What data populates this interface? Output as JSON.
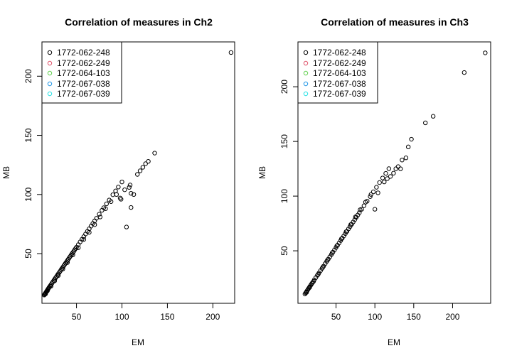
{
  "chart_data": [
    {
      "type": "scatter",
      "title": "Correlation of measures in Ch2",
      "xlabel": "EM",
      "ylabel": "MB",
      "xlim": [
        12,
        224
      ],
      "ylim": [
        8,
        229
      ],
      "xticks": [
        50,
        100,
        150,
        200
      ],
      "yticks": [
        50,
        100,
        150,
        200
      ],
      "grid": false,
      "legend_position": "top-left",
      "series": [
        {
          "name": "1772-062-248",
          "color": "#000000",
          "points": [
            [
              14.5,
              15
            ],
            [
              15,
              15.6
            ],
            [
              15.5,
              16.2
            ],
            [
              16,
              16.8
            ],
            [
              16.5,
              17.4
            ],
            [
              17,
              18
            ],
            [
              17.5,
              18.6
            ],
            [
              18,
              19.2
            ],
            [
              18.5,
              19.8
            ],
            [
              19,
              20.4
            ],
            [
              19.5,
              21
            ],
            [
              20,
              21.6
            ],
            [
              21,
              22.7
            ],
            [
              22,
              23.8
            ],
            [
              23,
              25
            ],
            [
              24,
              26.1
            ],
            [
              25,
              27.2
            ],
            [
              26,
              28.4
            ],
            [
              27,
              29.5
            ],
            [
              28,
              30.6
            ],
            [
              29,
              31.8
            ],
            [
              30,
              32.9
            ],
            [
              31,
              34
            ],
            [
              32,
              35.1
            ],
            [
              33,
              36.3
            ],
            [
              34,
              37.4
            ],
            [
              35,
              38.5
            ],
            [
              36,
              39.7
            ],
            [
              37,
              40.8
            ],
            [
              38,
              41.9
            ],
            [
              39,
              43
            ],
            [
              40,
              44.2
            ],
            [
              41,
              45.3
            ],
            [
              42,
              46.4
            ],
            [
              43,
              47.5
            ],
            [
              44,
              48.7
            ],
            [
              45,
              49.8
            ],
            [
              46,
              50.9
            ],
            [
              47,
              52
            ],
            [
              48,
              53.2
            ],
            [
              49,
              54.3
            ],
            [
              50,
              55.4
            ],
            [
              52,
              57.6
            ],
            [
              54,
              59.9
            ],
            [
              56,
              62.1
            ],
            [
              58,
              64.3
            ],
            [
              60,
              66.6
            ],
            [
              62,
              68.8
            ],
            [
              64,
              71
            ],
            [
              66,
              73.3
            ],
            [
              68,
              75.5
            ],
            [
              70,
              77.7
            ],
            [
              72,
              79.9
            ],
            [
              75,
              83.3
            ],
            [
              78,
              86.6
            ],
            [
              80,
              88.8
            ],
            [
              83,
              92.1
            ],
            [
              86,
              95.3
            ],
            [
              90,
              99.8
            ],
            [
              93,
              103
            ],
            [
              96,
              106.3
            ],
            [
              100,
              110.6
            ],
            [
              16,
              16
            ],
            [
              18,
              18.5
            ],
            [
              22,
              22.5
            ],
            [
              26,
              27
            ],
            [
              30,
              31.5
            ],
            [
              35,
              37
            ],
            [
              40,
              42.5
            ],
            [
              46,
              49
            ],
            [
              52,
              55
            ],
            [
              58,
              62
            ],
            [
              64,
              68
            ],
            [
              70,
              74.5
            ],
            [
              76,
              81
            ],
            [
              82,
              88
            ],
            [
              88,
              94
            ],
            [
              94,
              100
            ],
            [
              98,
              97
            ],
            [
              99,
              96
            ],
            [
              103,
              104
            ],
            [
              105,
              72.5
            ],
            [
              108,
              106
            ],
            [
              109,
              108
            ],
            [
              110,
              101
            ],
            [
              110,
              89
            ],
            [
              113,
              100
            ],
            [
              117,
              117
            ],
            [
              120,
              120
            ],
            [
              123,
              123
            ],
            [
              126,
              126
            ],
            [
              129,
              128
            ],
            [
              136,
              135
            ],
            [
              220,
              220
            ]
          ]
        },
        {
          "name": "1772-062-249",
          "color": "#df536b",
          "points": []
        },
        {
          "name": "1772-064-103",
          "color": "#61d04f",
          "points": []
        },
        {
          "name": "1772-067-038",
          "color": "#2297e6",
          "points": []
        },
        {
          "name": "1772-067-039",
          "color": "#28e2e5",
          "points": []
        }
      ]
    },
    {
      "type": "scatter",
      "title": "Correlation of measures in Ch3",
      "xlabel": "EM",
      "ylabel": "MB",
      "xlim": [
        1,
        249
      ],
      "ylim": [
        2,
        241
      ],
      "xticks": [
        50,
        100,
        150,
        200
      ],
      "yticks": [
        50,
        100,
        150,
        200
      ],
      "grid": false,
      "legend_position": "top-left",
      "series": [
        {
          "name": "1772-062-248",
          "color": "#000000",
          "points": [
            [
              10,
              10.5
            ],
            [
              11,
              11.5
            ],
            [
              12,
              12.6
            ],
            [
              13,
              13.7
            ],
            [
              14,
              14.8
            ],
            [
              15,
              15.9
            ],
            [
              16,
              17
            ],
            [
              17,
              18
            ],
            [
              18,
              19.1
            ],
            [
              19,
              20.2
            ],
            [
              20,
              21.2
            ],
            [
              22,
              23.4
            ],
            [
              24,
              25.5
            ],
            [
              26,
              27.6
            ],
            [
              28,
              29.7
            ],
            [
              30,
              31.8
            ],
            [
              32,
              33.9
            ],
            [
              34,
              36
            ],
            [
              36,
              38.2
            ],
            [
              38,
              40.3
            ],
            [
              40,
              42.4
            ],
            [
              42,
              44.5
            ],
            [
              44,
              46.6
            ],
            [
              46,
              48.8
            ],
            [
              48,
              50.9
            ],
            [
              50,
              53
            ],
            [
              52,
              55.1
            ],
            [
              54,
              57.2
            ],
            [
              56,
              59.4
            ],
            [
              58,
              61.5
            ],
            [
              60,
              63.6
            ],
            [
              62,
              65.7
            ],
            [
              64,
              67.8
            ],
            [
              66,
              70
            ],
            [
              68,
              72.1
            ],
            [
              70,
              74.2
            ],
            [
              72,
              76.3
            ],
            [
              74,
              78.4
            ],
            [
              76,
              80.6
            ],
            [
              78,
              82.7
            ],
            [
              80,
              84.8
            ],
            [
              83,
              88
            ],
            [
              86,
              91.2
            ],
            [
              90,
              95.4
            ],
            [
              94,
              99.6
            ],
            [
              98,
              103.9
            ],
            [
              102,
              108.1
            ],
            [
              106,
              112.4
            ],
            [
              110,
              116.6
            ],
            [
              114,
              120.8
            ],
            [
              118,
              125.1
            ],
            [
              12,
              12
            ],
            [
              16,
              16.5
            ],
            [
              21,
              22
            ],
            [
              27,
              28.5
            ],
            [
              33,
              35
            ],
            [
              39,
              41.5
            ],
            [
              45,
              48
            ],
            [
              51,
              54.5
            ],
            [
              57,
              61
            ],
            [
              63,
              67.5
            ],
            [
              69,
              74
            ],
            [
              75,
              81
            ],
            [
              81,
              87.5
            ],
            [
              88,
              94.5
            ],
            [
              95,
              101.5
            ],
            [
              100,
              88
            ],
            [
              104,
              103
            ],
            [
              112,
              113
            ],
            [
              116,
              116
            ],
            [
              120,
              118
            ],
            [
              124,
              121
            ],
            [
              127,
              125
            ],
            [
              130,
              127
            ],
            [
              133,
              125
            ],
            [
              135,
              133
            ],
            [
              140,
              135
            ],
            [
              143,
              145
            ],
            [
              147,
              152
            ],
            [
              165,
              167
            ],
            [
              175,
              173
            ],
            [
              215,
              213
            ],
            [
              242,
              231
            ]
          ]
        },
        {
          "name": "1772-062-249",
          "color": "#df536b",
          "points": []
        },
        {
          "name": "1772-064-103",
          "color": "#61d04f",
          "points": []
        },
        {
          "name": "1772-067-038",
          "color": "#2297e6",
          "points": []
        },
        {
          "name": "1772-067-039",
          "color": "#28e2e5",
          "points": []
        }
      ]
    }
  ]
}
